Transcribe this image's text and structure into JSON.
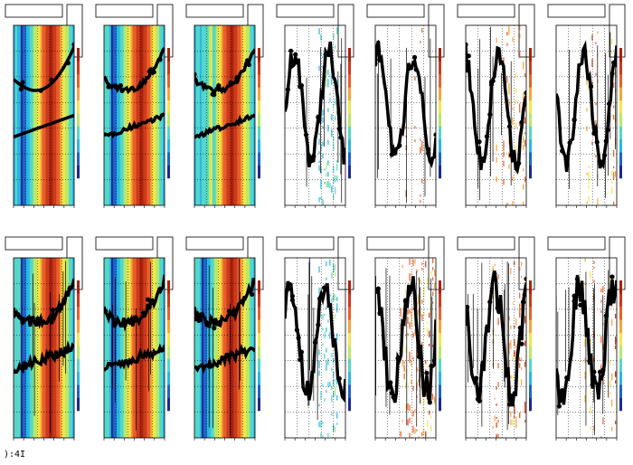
{
  "chart_data": [
    {
      "type": "heatmap",
      "overlay": "line",
      "style": "warm-band",
      "trend": "double-curve",
      "noise": 0
    },
    {
      "type": "heatmap",
      "overlay": "line",
      "style": "warm-band",
      "trend": "double-curve",
      "noise": 1
    },
    {
      "type": "heatmap",
      "overlay": "line",
      "style": "warm-cool-band",
      "trend": "double-curve",
      "noise": 1
    },
    {
      "type": "heatmap",
      "overlay": "line",
      "style": "cool-scatter",
      "trend": "noisy",
      "noise": 2
    },
    {
      "type": "heatmap",
      "overlay": "line",
      "style": "sparse",
      "trend": "wavy",
      "noise": 2
    },
    {
      "type": "heatmap",
      "overlay": "line",
      "style": "sparse",
      "trend": "wavy",
      "noise": 2
    },
    {
      "type": "heatmap",
      "overlay": "line",
      "style": "sparse",
      "trend": "wavy",
      "noise": 2
    },
    {
      "type": "heatmap",
      "overlay": "line",
      "style": "warm-band",
      "trend": "double-curve",
      "noise": 2
    },
    {
      "type": "heatmap",
      "overlay": "line",
      "style": "warm-band",
      "trend": "double-curve",
      "noise": 2
    },
    {
      "type": "heatmap",
      "overlay": "line",
      "style": "warm-band",
      "trend": "double-curve",
      "noise": 2
    },
    {
      "type": "heatmap",
      "overlay": "line",
      "style": "cool-scatter",
      "trend": "noisy",
      "noise": 2
    },
    {
      "type": "heatmap",
      "overlay": "line",
      "style": "warm-sparse",
      "trend": "noisy",
      "noise": 3
    },
    {
      "type": "heatmap",
      "overlay": "line",
      "style": "sparse",
      "trend": "noisy",
      "noise": 3
    },
    {
      "type": "heatmap",
      "overlay": "line",
      "style": "sparse",
      "trend": "noisy",
      "noise": 3
    }
  ],
  "status_text": "):4I",
  "colors": {
    "palette": [
      "#1a2a8c",
      "#1f63c8",
      "#29b6e6",
      "#55d6c8",
      "#b8e86a",
      "#f2e64a",
      "#f6a43a",
      "#e8602a",
      "#cc3a1c",
      "#a8230f"
    ],
    "marker": "#000000",
    "frame": "#000000"
  }
}
